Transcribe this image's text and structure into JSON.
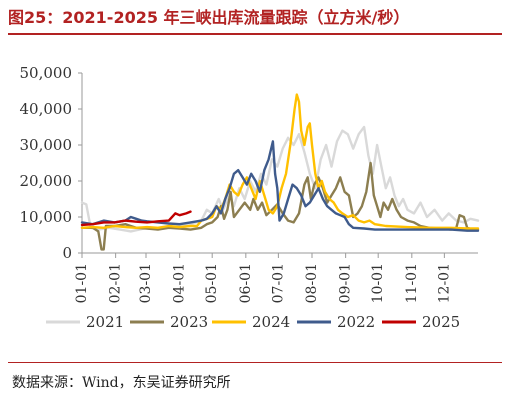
{
  "title": "图25：2021-2025 年三峡出库流量跟踪（立方米/秒）",
  "source": "数据来源：Wind，东吴证券研究所",
  "chart_data": {
    "type": "line",
    "ylim": [
      0,
      50000
    ],
    "yticks": [
      0,
      10000,
      20000,
      30000,
      40000,
      50000
    ],
    "ytick_labels": [
      "0",
      "10,000",
      "20,000",
      "30,000",
      "40,000",
      "50,000"
    ],
    "xlim": [
      0,
      365
    ],
    "xticks": [
      0,
      31,
      59,
      90,
      120,
      151,
      181,
      212,
      243,
      273,
      304,
      334
    ],
    "xtick_labels": [
      "01-01",
      "02-01",
      "03-01",
      "04-01",
      "05-01",
      "06-01",
      "07-01",
      "08-01",
      "09-01",
      "10-01",
      "11-01",
      "12-01"
    ],
    "grid": false,
    "legend_position": "bottom",
    "series": [
      {
        "name": "2021",
        "color": "#d9d9d9",
        "points": [
          [
            0,
            14000
          ],
          [
            4,
            13500
          ],
          [
            8,
            7000
          ],
          [
            15,
            6500
          ],
          [
            25,
            7000
          ],
          [
            35,
            6500
          ],
          [
            45,
            6000
          ],
          [
            60,
            7000
          ],
          [
            75,
            6800
          ],
          [
            90,
            7500
          ],
          [
            100,
            8000
          ],
          [
            110,
            9000
          ],
          [
            115,
            12000
          ],
          [
            120,
            11000
          ],
          [
            126,
            15000
          ],
          [
            130,
            12000
          ],
          [
            136,
            16000
          ],
          [
            140,
            13000
          ],
          [
            145,
            18000
          ],
          [
            150,
            15000
          ],
          [
            155,
            20000
          ],
          [
            160,
            17000
          ],
          [
            165,
            22000
          ],
          [
            170,
            19000
          ],
          [
            175,
            26000
          ],
          [
            180,
            24000
          ],
          [
            185,
            29000
          ],
          [
            190,
            32000
          ],
          [
            195,
            30000
          ],
          [
            200,
            33000
          ],
          [
            205,
            28000
          ],
          [
            210,
            22000
          ],
          [
            215,
            18000
          ],
          [
            220,
            26000
          ],
          [
            225,
            30000
          ],
          [
            230,
            24000
          ],
          [
            235,
            31000
          ],
          [
            240,
            34000
          ],
          [
            245,
            33000
          ],
          [
            250,
            29000
          ],
          [
            255,
            33000
          ],
          [
            260,
            35000
          ],
          [
            264,
            27000
          ],
          [
            268,
            22000
          ],
          [
            272,
            30000
          ],
          [
            276,
            24000
          ],
          [
            280,
            18000
          ],
          [
            284,
            21000
          ],
          [
            288,
            16000
          ],
          [
            292,
            13000
          ],
          [
            296,
            15000
          ],
          [
            300,
            12000
          ],
          [
            306,
            11000
          ],
          [
            312,
            14000
          ],
          [
            318,
            10000
          ],
          [
            325,
            12000
          ],
          [
            332,
            9000
          ],
          [
            338,
            11000
          ],
          [
            345,
            9000
          ],
          [
            352,
            8500
          ],
          [
            358,
            9500
          ],
          [
            365,
            9000
          ]
        ]
      },
      {
        "name": "2023",
        "color": "#8c7e50",
        "points": [
          [
            0,
            7000
          ],
          [
            10,
            7000
          ],
          [
            15,
            6000
          ],
          [
            18,
            1000
          ],
          [
            20,
            1000
          ],
          [
            22,
            7500
          ],
          [
            30,
            7500
          ],
          [
            40,
            8000
          ],
          [
            50,
            7000
          ],
          [
            60,
            6800
          ],
          [
            70,
            6500
          ],
          [
            80,
            7000
          ],
          [
            90,
            6800
          ],
          [
            100,
            6500
          ],
          [
            110,
            7000
          ],
          [
            115,
            8000
          ],
          [
            120,
            8500
          ],
          [
            125,
            10000
          ],
          [
            128,
            13000
          ],
          [
            131,
            9500
          ],
          [
            134,
            12000
          ],
          [
            137,
            17000
          ],
          [
            140,
            10000
          ],
          [
            145,
            12000
          ],
          [
            150,
            14000
          ],
          [
            155,
            12000
          ],
          [
            158,
            15000
          ],
          [
            162,
            12000
          ],
          [
            166,
            14000
          ],
          [
            170,
            10500
          ],
          [
            175,
            12000
          ],
          [
            180,
            13500
          ],
          [
            185,
            11000
          ],
          [
            190,
            9000
          ],
          [
            195,
            8500
          ],
          [
            200,
            11000
          ],
          [
            205,
            19000
          ],
          [
            208,
            21000
          ],
          [
            211,
            15000
          ],
          [
            214,
            19000
          ],
          [
            218,
            21000
          ],
          [
            222,
            18000
          ],
          [
            226,
            14000
          ],
          [
            230,
            16000
          ],
          [
            234,
            18000
          ],
          [
            238,
            21000
          ],
          [
            242,
            17000
          ],
          [
            246,
            16000
          ],
          [
            250,
            10000
          ],
          [
            254,
            11000
          ],
          [
            258,
            13000
          ],
          [
            262,
            17000
          ],
          [
            266,
            25000
          ],
          [
            269,
            16000
          ],
          [
            272,
            13000
          ],
          [
            275,
            10000
          ],
          [
            278,
            14000
          ],
          [
            282,
            12000
          ],
          [
            286,
            15000
          ],
          [
            290,
            12000
          ],
          [
            294,
            10000
          ],
          [
            300,
            9000
          ],
          [
            306,
            8500
          ],
          [
            312,
            7500
          ],
          [
            320,
            7000
          ],
          [
            330,
            6800
          ],
          [
            340,
            6500
          ],
          [
            345,
            7000
          ],
          [
            348,
            10500
          ],
          [
            352,
            10000
          ],
          [
            355,
            7000
          ],
          [
            360,
            6500
          ],
          [
            365,
            6500
          ]
        ]
      },
      {
        "name": "2024",
        "color": "#ffc000",
        "points": [
          [
            0,
            7000
          ],
          [
            10,
            7200
          ],
          [
            20,
            7000
          ],
          [
            30,
            7500
          ],
          [
            40,
            7200
          ],
          [
            50,
            7000
          ],
          [
            60,
            7200
          ],
          [
            70,
            7000
          ],
          [
            80,
            7500
          ],
          [
            90,
            7200
          ],
          [
            100,
            7500
          ],
          [
            106,
            7500
          ],
          [
            110,
            9000
          ],
          [
            115,
            9500
          ],
          [
            120,
            10000
          ],
          [
            124,
            13000
          ],
          [
            128,
            12000
          ],
          [
            132,
            15000
          ],
          [
            136,
            19000
          ],
          [
            140,
            17000
          ],
          [
            144,
            16000
          ],
          [
            148,
            19000
          ],
          [
            152,
            21000
          ],
          [
            156,
            18000
          ],
          [
            160,
            15000
          ],
          [
            164,
            20000
          ],
          [
            168,
            16000
          ],
          [
            172,
            12000
          ],
          [
            176,
            11000
          ],
          [
            180,
            13000
          ],
          [
            184,
            18000
          ],
          [
            188,
            22000
          ],
          [
            192,
            30000
          ],
          [
            196,
            40000
          ],
          [
            198,
            44000
          ],
          [
            200,
            42000
          ],
          [
            202,
            34000
          ],
          [
            205,
            30000
          ],
          [
            208,
            35000
          ],
          [
            210,
            36000
          ],
          [
            212,
            30000
          ],
          [
            215,
            22000
          ],
          [
            218,
            18000
          ],
          [
            221,
            20000
          ],
          [
            224,
            17000
          ],
          [
            228,
            15000
          ],
          [
            232,
            14000
          ],
          [
            236,
            12000
          ],
          [
            240,
            11000
          ],
          [
            245,
            10000
          ],
          [
            250,
            10500
          ],
          [
            255,
            9000
          ],
          [
            260,
            8500
          ],
          [
            265,
            9000
          ],
          [
            270,
            8000
          ],
          [
            280,
            7500
          ],
          [
            300,
            7200
          ],
          [
            320,
            7000
          ],
          [
            340,
            7000
          ],
          [
            355,
            6800
          ],
          [
            365,
            6800
          ]
        ]
      },
      {
        "name": "2022",
        "color": "#3f5b8c",
        "points": [
          [
            0,
            8500
          ],
          [
            10,
            8000
          ],
          [
            20,
            9000
          ],
          [
            30,
            8500
          ],
          [
            40,
            9000
          ],
          [
            45,
            10000
          ],
          [
            50,
            9500
          ],
          [
            55,
            9000
          ],
          [
            60,
            8800
          ],
          [
            70,
            8500
          ],
          [
            80,
            8200
          ],
          [
            90,
            8000
          ],
          [
            100,
            8500
          ],
          [
            110,
            9000
          ],
          [
            115,
            9500
          ],
          [
            120,
            11000
          ],
          [
            124,
            13000
          ],
          [
            128,
            11000
          ],
          [
            132,
            15000
          ],
          [
            136,
            18000
          ],
          [
            140,
            22000
          ],
          [
            144,
            23000
          ],
          [
            148,
            21000
          ],
          [
            152,
            19000
          ],
          [
            156,
            22000
          ],
          [
            160,
            20000
          ],
          [
            164,
            17000
          ],
          [
            168,
            23000
          ],
          [
            172,
            26000
          ],
          [
            176,
            31000
          ],
          [
            178,
            22000
          ],
          [
            180,
            18000
          ],
          [
            182,
            9000
          ],
          [
            186,
            11000
          ],
          [
            190,
            15000
          ],
          [
            194,
            19000
          ],
          [
            198,
            18000
          ],
          [
            202,
            16000
          ],
          [
            206,
            13000
          ],
          [
            210,
            14000
          ],
          [
            214,
            16000
          ],
          [
            218,
            18000
          ],
          [
            222,
            15000
          ],
          [
            226,
            13000
          ],
          [
            230,
            12000
          ],
          [
            234,
            11000
          ],
          [
            238,
            10500
          ],
          [
            242,
            10000
          ],
          [
            246,
            8000
          ],
          [
            250,
            7000
          ],
          [
            260,
            6800
          ],
          [
            270,
            6500
          ],
          [
            280,
            6500
          ],
          [
            300,
            6500
          ],
          [
            320,
            6500
          ],
          [
            340,
            6500
          ],
          [
            355,
            6200
          ],
          [
            365,
            6200
          ]
        ]
      },
      {
        "name": "2025",
        "color": "#c00000",
        "points": [
          [
            0,
            7800
          ],
          [
            10,
            8000
          ],
          [
            20,
            8500
          ],
          [
            30,
            8500
          ],
          [
            40,
            9000
          ],
          [
            50,
            8700
          ],
          [
            60,
            8500
          ],
          [
            70,
            8800
          ],
          [
            80,
            9000
          ],
          [
            86,
            11000
          ],
          [
            90,
            10500
          ],
          [
            96,
            11000
          ],
          [
            100,
            11500
          ]
        ]
      }
    ]
  }
}
